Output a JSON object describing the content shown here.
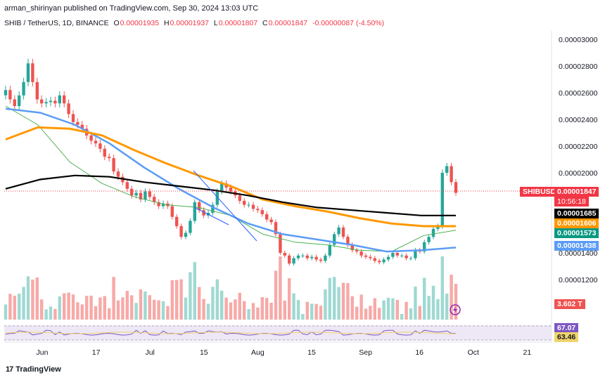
{
  "header": {
    "published": "arman_shirinyan published on TradingView.com, Sep 30, 2024 13:03 UTC"
  },
  "symbol_line": {
    "symbol": "SHIB / TetherUS, 1D, BINANCE",
    "o_label": "O",
    "o": "0.00001935",
    "h_label": "H",
    "h": "0.00001937",
    "l_label": "L",
    "l": "0.00001807",
    "c_label": "C",
    "c": "0.00001847",
    "change": "-0.00000087 (-4.50%)"
  },
  "price_axis": {
    "ticks": [
      "0.00003000",
      "0.00002800",
      "0.00002600",
      "0.00002400",
      "0.00002200",
      "0.00002000",
      "0.00001400",
      "0.00001200",
      "0000"
    ]
  },
  "time_axis": {
    "ticks": [
      "Jun",
      "17",
      "Jul",
      "15",
      "Aug",
      "15",
      "Sep",
      "16",
      "Oct",
      "21"
    ]
  },
  "tags": {
    "ticker": "SHIBUSDT",
    "last_price": "0.00001847",
    "countdown": "10:56:18",
    "ma200": "0.00001685",
    "ma100": "0.00001606",
    "ma20": "0.00001573",
    "ma50": "0.00001438",
    "volume": "3.602 T",
    "rsi": "67.07",
    "rsi_ma": "63.46"
  },
  "footer": {
    "brand": "TradingView"
  },
  "colors": {
    "up": "#26a69a",
    "down": "#ef5350",
    "ma200": "#000000",
    "ma100": "#ff9800",
    "ma50": "#5b9cf6",
    "ma20": "#4caf50",
    "rsi": "#7e57c2",
    "rsi_ma": "#f0d46b"
  },
  "chart_data": {
    "type": "candlestick",
    "title": "SHIB / TetherUS, 1D, BINANCE",
    "ylim": [
      1e-05,
      3.1e-05
    ],
    "x_tick_labels": [
      "Jun",
      "17",
      "Jul",
      "15",
      "Aug",
      "15",
      "Sep",
      "16",
      "Oct",
      "21"
    ],
    "candles_close": [
      2.62e-05,
      2.55e-05,
      2.5e-05,
      2.58e-05,
      2.68e-05,
      2.82e-05,
      2.68e-05,
      2.55e-05,
      2.52e-05,
      2.53e-05,
      2.54e-05,
      2.52e-05,
      2.58e-05,
      2.52e-05,
      2.44e-05,
      2.38e-05,
      2.36e-05,
      2.33e-05,
      2.28e-05,
      2.24e-05,
      2.22e-05,
      2.18e-05,
      2.12e-05,
      2.11e-05,
      2.01e-05,
      1.97e-05,
      1.93e-05,
      1.88e-05,
      1.83e-05,
      1.85e-05,
      1.8e-05,
      1.86e-05,
      1.82e-05,
      1.78e-05,
      1.75e-05,
      1.77e-05,
      1.75e-05,
      1.67e-05,
      1.6e-05,
      1.52e-05,
      1.55e-05,
      1.64e-05,
      1.78e-05,
      1.72e-05,
      1.68e-05,
      1.7e-05,
      1.76e-05,
      1.86e-05,
      1.92e-05,
      1.89e-05,
      1.86e-05,
      1.83e-05,
      1.79e-05,
      1.76e-05,
      1.76e-05,
      1.73e-05,
      1.72e-05,
      1.69e-05,
      1.65e-05,
      1.63e-05,
      1.54e-05,
      1.4e-05,
      1.38e-05,
      1.32e-05,
      1.36e-05,
      1.38e-05,
      1.38e-05,
      1.36e-05,
      1.37e-05,
      1.35e-05,
      1.34e-05,
      1.38e-05,
      1.46e-05,
      1.54e-05,
      1.59e-05,
      1.52e-05,
      1.46e-05,
      1.42e-05,
      1.41e-05,
      1.38e-05,
      1.37e-05,
      1.36e-05,
      1.34e-05,
      1.33e-05,
      1.35e-05,
      1.37e-05,
      1.4e-05,
      1.38e-05,
      1.38e-05,
      1.36e-05,
      1.36e-05,
      1.42e-05,
      1.41e-05,
      1.48e-05,
      1.52e-05,
      1.58e-05,
      1.6e-05,
      2e-05,
      2.05e-05,
      1.93e-05,
      1.85e-05
    ],
    "ma200": [
      1.88e-05,
      1.95e-05,
      1.98e-05,
      1.97e-05,
      1.93e-05,
      1.9e-05,
      1.87e-05,
      1.83e-05,
      1.78e-05,
      1.74e-05,
      1.72e-05,
      1.7e-05,
      1.68e-05,
      1.68e-05
    ],
    "ma100": [
      2.25e-05,
      2.34e-05,
      2.33e-05,
      2.28e-05,
      2.17e-05,
      2.07e-05,
      1.98e-05,
      1.9e-05,
      1.8e-05,
      1.75e-05,
      1.71e-05,
      1.66e-05,
      1.62e-05,
      1.6e-05,
      1.6e-05
    ],
    "ma50": [
      2.48e-05,
      2.45e-05,
      2.36e-05,
      2.22e-05,
      2.04e-05,
      1.88e-05,
      1.74e-05,
      1.62e-05,
      1.54e-05,
      1.5e-05,
      1.46e-05,
      1.41e-05,
      1.42e-05,
      1.44e-05
    ],
    "ma20": [
      2.5e-05,
      2.36e-05,
      2.08e-05,
      1.92e-05,
      1.82e-05,
      1.76e-05,
      1.74e-05,
      1.68e-05,
      1.54e-05,
      1.48e-05,
      1.46e-05,
      1.42e-05,
      1.41e-05,
      1.53e-05,
      1.57e-05
    ],
    "rsi_last": 67.07,
    "rsi_ma_last": 63.46,
    "volume_last": "3.602 T"
  }
}
